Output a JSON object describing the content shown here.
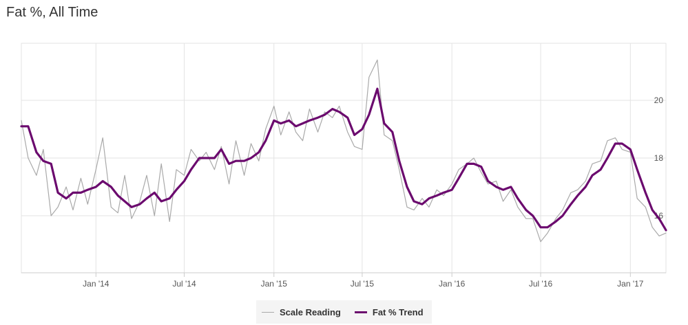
{
  "title": "Fat %, All Time",
  "colors": {
    "scale": "#a9a9a9",
    "trend": "#6b0a6e",
    "grid": "#e3e3e3",
    "axis": "#cccccc"
  },
  "legend": [
    {
      "label": "Scale Reading",
      "color_key": "scale"
    },
    {
      "label": "Fat % Trend",
      "color_key": "trend"
    }
  ],
  "chart_data": {
    "type": "line",
    "title": "Fat %, All Time",
    "x_start": "2013-08-01",
    "x_end": "2017-03-15",
    "ylim": [
      14,
      22
    ],
    "y_ticks": [
      20,
      18,
      16
    ],
    "y_tick_labels": [
      "20",
      "18",
      "16"
    ],
    "x_ticks": [
      "2014-01-01",
      "2014-07-01",
      "2015-01-01",
      "2015-07-01",
      "2016-01-01",
      "2016-07-01",
      "2017-01-01"
    ],
    "x_tick_labels": [
      "Jan '14",
      "Jul '14",
      "Jan '15",
      "Jul '15",
      "Jan '16",
      "Jul '16",
      "Jan '17"
    ],
    "grid": true,
    "legend_position": "bottom",
    "series": [
      {
        "name": "Fat % Trend",
        "x": [
          "2013-08-01",
          "2013-08-15",
          "2013-09-01",
          "2013-09-15",
          "2013-10-01",
          "2013-10-15",
          "2013-11-01",
          "2013-11-15",
          "2013-12-01",
          "2013-12-15",
          "2014-01-01",
          "2014-01-15",
          "2014-02-01",
          "2014-02-15",
          "2014-03-01",
          "2014-03-15",
          "2014-04-01",
          "2014-04-15",
          "2014-05-01",
          "2014-05-15",
          "2014-06-01",
          "2014-06-15",
          "2014-07-01",
          "2014-07-15",
          "2014-08-01",
          "2014-08-15",
          "2014-09-01",
          "2014-09-15",
          "2014-10-01",
          "2014-10-15",
          "2014-11-01",
          "2014-11-15",
          "2014-12-01",
          "2014-12-15",
          "2015-01-01",
          "2015-01-15",
          "2015-02-01",
          "2015-02-15",
          "2015-03-01",
          "2015-03-15",
          "2015-04-01",
          "2015-04-15",
          "2015-05-01",
          "2015-05-15",
          "2015-06-01",
          "2015-06-15",
          "2015-07-01",
          "2015-07-15",
          "2015-08-01",
          "2015-08-15",
          "2015-09-01",
          "2015-09-15",
          "2015-10-01",
          "2015-10-15",
          "2015-11-01",
          "2015-11-15",
          "2015-12-01",
          "2015-12-15",
          "2016-01-01",
          "2016-01-15",
          "2016-02-01",
          "2016-02-15",
          "2016-03-01",
          "2016-03-15",
          "2016-04-01",
          "2016-04-15",
          "2016-05-01",
          "2016-05-15",
          "2016-06-01",
          "2016-06-15",
          "2016-07-01",
          "2016-07-15",
          "2016-08-01",
          "2016-08-15",
          "2016-09-01",
          "2016-09-15",
          "2016-10-01",
          "2016-10-15",
          "2016-11-01",
          "2016-11-15",
          "2016-12-01",
          "2016-12-15",
          "2017-01-01",
          "2017-01-15",
          "2017-02-01",
          "2017-02-15",
          "2017-03-01",
          "2017-03-15"
        ],
        "y": [
          19.1,
          19.1,
          18.2,
          17.9,
          17.8,
          16.8,
          16.6,
          16.8,
          16.8,
          16.9,
          17.0,
          17.2,
          17.0,
          16.7,
          16.5,
          16.3,
          16.4,
          16.6,
          16.8,
          16.5,
          16.6,
          16.9,
          17.2,
          17.6,
          18.0,
          18.0,
          18.0,
          18.3,
          17.8,
          17.9,
          17.9,
          18.0,
          18.2,
          18.6,
          19.3,
          19.2,
          19.3,
          19.1,
          19.2,
          19.3,
          19.4,
          19.5,
          19.7,
          19.6,
          19.4,
          18.8,
          19.0,
          19.5,
          20.4,
          19.2,
          18.9,
          17.9,
          17.0,
          16.5,
          16.4,
          16.6,
          16.7,
          16.8,
          16.9,
          17.3,
          17.8,
          17.8,
          17.7,
          17.2,
          17.0,
          16.9,
          17.0,
          16.6,
          16.2,
          16.0,
          15.6,
          15.6,
          15.8,
          16.0,
          16.4,
          16.7,
          17.0,
          17.4,
          17.6,
          18.0,
          18.5,
          18.5,
          18.3,
          17.6,
          16.8,
          16.2,
          15.9,
          15.5
        ]
      },
      {
        "name": "Scale Reading",
        "x": [
          "2013-08-01",
          "2013-08-15",
          "2013-09-01",
          "2013-09-15",
          "2013-10-01",
          "2013-10-15",
          "2013-11-01",
          "2013-11-15",
          "2013-12-01",
          "2013-12-15",
          "2014-01-01",
          "2014-01-15",
          "2014-02-01",
          "2014-02-15",
          "2014-03-01",
          "2014-03-15",
          "2014-04-01",
          "2014-04-15",
          "2014-05-01",
          "2014-05-15",
          "2014-06-01",
          "2014-06-15",
          "2014-07-01",
          "2014-07-15",
          "2014-08-01",
          "2014-08-15",
          "2014-09-01",
          "2014-09-15",
          "2014-10-01",
          "2014-10-15",
          "2014-11-01",
          "2014-11-15",
          "2014-12-01",
          "2014-12-15",
          "2015-01-01",
          "2015-01-15",
          "2015-02-01",
          "2015-02-15",
          "2015-03-01",
          "2015-03-15",
          "2015-04-01",
          "2015-04-15",
          "2015-05-01",
          "2015-05-15",
          "2015-06-01",
          "2015-06-15",
          "2015-07-01",
          "2015-07-15",
          "2015-08-01",
          "2015-08-15",
          "2015-09-01",
          "2015-09-15",
          "2015-10-01",
          "2015-10-15",
          "2015-11-01",
          "2015-11-15",
          "2015-12-01",
          "2015-12-15",
          "2016-01-01",
          "2016-01-15",
          "2016-02-01",
          "2016-02-15",
          "2016-03-01",
          "2016-03-15",
          "2016-04-01",
          "2016-04-15",
          "2016-05-01",
          "2016-05-15",
          "2016-06-01",
          "2016-06-15",
          "2016-07-01",
          "2016-07-15",
          "2016-08-01",
          "2016-08-15",
          "2016-09-01",
          "2016-09-15",
          "2016-10-01",
          "2016-10-15",
          "2016-11-01",
          "2016-11-15",
          "2016-12-01",
          "2016-12-15",
          "2017-01-01",
          "2017-01-15",
          "2017-02-01",
          "2017-02-15",
          "2017-03-01",
          "2017-03-15"
        ],
        "y": [
          19.3,
          18.0,
          17.4,
          18.3,
          16.0,
          16.3,
          17.0,
          16.2,
          17.3,
          16.4,
          17.6,
          18.7,
          16.3,
          16.1,
          17.4,
          15.9,
          16.5,
          17.4,
          16.0,
          17.8,
          15.8,
          17.6,
          17.4,
          18.3,
          17.9,
          18.2,
          17.6,
          18.4,
          17.1,
          18.6,
          17.4,
          18.5,
          17.9,
          19.0,
          19.8,
          18.8,
          19.6,
          18.9,
          18.6,
          19.7,
          18.9,
          19.6,
          19.4,
          19.8,
          18.9,
          18.4,
          18.3,
          20.8,
          21.4,
          18.8,
          18.6,
          17.6,
          16.3,
          16.2,
          16.6,
          16.3,
          16.9,
          16.7,
          17.1,
          17.6,
          17.8,
          18.0,
          17.5,
          17.1,
          17.2,
          16.5,
          16.9,
          16.3,
          15.9,
          15.9,
          15.1,
          15.4,
          15.9,
          16.2,
          16.8,
          16.9,
          17.2,
          17.8,
          17.9,
          18.6,
          18.7,
          18.3,
          18.2,
          16.6,
          16.3,
          15.6,
          15.3,
          15.4
        ]
      }
    ]
  }
}
